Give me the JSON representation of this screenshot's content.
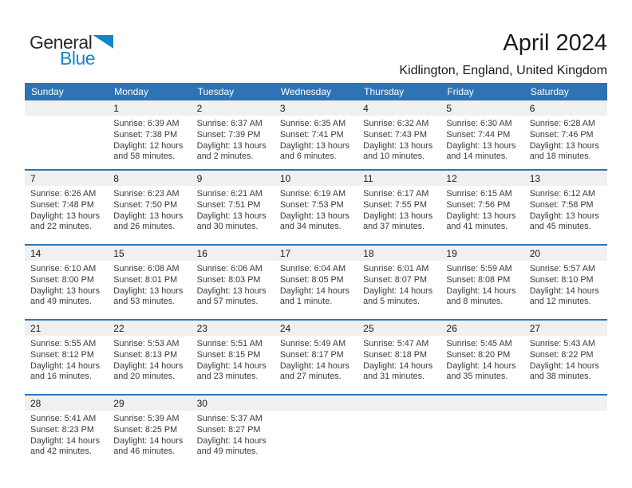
{
  "logo": {
    "part1": "General",
    "part2": "Blue"
  },
  "title": "April 2024",
  "subtitle": "Kidlington, England, United Kingdom",
  "colors": {
    "header_blue": "#2E74B5",
    "week_divider_blue": "#2E74B5",
    "day_band_gray": "#F0F0F0",
    "logo_blue": "#1287C8",
    "header_text": "#FFFFFF"
  },
  "weekday_headers": [
    "Sunday",
    "Monday",
    "Tuesday",
    "Wednesday",
    "Thursday",
    "Friday",
    "Saturday"
  ],
  "weeks": [
    [
      null,
      {
        "day": "1",
        "lines": [
          "Sunrise: 6:39 AM",
          "Sunset: 7:38 PM",
          "Daylight: 12 hours",
          "and 58 minutes."
        ]
      },
      {
        "day": "2",
        "lines": [
          "Sunrise: 6:37 AM",
          "Sunset: 7:39 PM",
          "Daylight: 13 hours",
          "and 2 minutes."
        ]
      },
      {
        "day": "3",
        "lines": [
          "Sunrise: 6:35 AM",
          "Sunset: 7:41 PM",
          "Daylight: 13 hours",
          "and 6 minutes."
        ]
      },
      {
        "day": "4",
        "lines": [
          "Sunrise: 6:32 AM",
          "Sunset: 7:43 PM",
          "Daylight: 13 hours",
          "and 10 minutes."
        ]
      },
      {
        "day": "5",
        "lines": [
          "Sunrise: 6:30 AM",
          "Sunset: 7:44 PM",
          "Daylight: 13 hours",
          "and 14 minutes."
        ]
      },
      {
        "day": "6",
        "lines": [
          "Sunrise: 6:28 AM",
          "Sunset: 7:46 PM",
          "Daylight: 13 hours",
          "and 18 minutes."
        ]
      }
    ],
    [
      {
        "day": "7",
        "lines": [
          "Sunrise: 6:26 AM",
          "Sunset: 7:48 PM",
          "Daylight: 13 hours",
          "and 22 minutes."
        ]
      },
      {
        "day": "8",
        "lines": [
          "Sunrise: 6:23 AM",
          "Sunset: 7:50 PM",
          "Daylight: 13 hours",
          "and 26 minutes."
        ]
      },
      {
        "day": "9",
        "lines": [
          "Sunrise: 6:21 AM",
          "Sunset: 7:51 PM",
          "Daylight: 13 hours",
          "and 30 minutes."
        ]
      },
      {
        "day": "10",
        "lines": [
          "Sunrise: 6:19 AM",
          "Sunset: 7:53 PM",
          "Daylight: 13 hours",
          "and 34 minutes."
        ]
      },
      {
        "day": "11",
        "lines": [
          "Sunrise: 6:17 AM",
          "Sunset: 7:55 PM",
          "Daylight: 13 hours",
          "and 37 minutes."
        ]
      },
      {
        "day": "12",
        "lines": [
          "Sunrise: 6:15 AM",
          "Sunset: 7:56 PM",
          "Daylight: 13 hours",
          "and 41 minutes."
        ]
      },
      {
        "day": "13",
        "lines": [
          "Sunrise: 6:12 AM",
          "Sunset: 7:58 PM",
          "Daylight: 13 hours",
          "and 45 minutes."
        ]
      }
    ],
    [
      {
        "day": "14",
        "lines": [
          "Sunrise: 6:10 AM",
          "Sunset: 8:00 PM",
          "Daylight: 13 hours",
          "and 49 minutes."
        ]
      },
      {
        "day": "15",
        "lines": [
          "Sunrise: 6:08 AM",
          "Sunset: 8:01 PM",
          "Daylight: 13 hours",
          "and 53 minutes."
        ]
      },
      {
        "day": "16",
        "lines": [
          "Sunrise: 6:06 AM",
          "Sunset: 8:03 PM",
          "Daylight: 13 hours",
          "and 57 minutes."
        ]
      },
      {
        "day": "17",
        "lines": [
          "Sunrise: 6:04 AM",
          "Sunset: 8:05 PM",
          "Daylight: 14 hours",
          "and 1 minute."
        ]
      },
      {
        "day": "18",
        "lines": [
          "Sunrise: 6:01 AM",
          "Sunset: 8:07 PM",
          "Daylight: 14 hours",
          "and 5 minutes."
        ]
      },
      {
        "day": "19",
        "lines": [
          "Sunrise: 5:59 AM",
          "Sunset: 8:08 PM",
          "Daylight: 14 hours",
          "and 8 minutes."
        ]
      },
      {
        "day": "20",
        "lines": [
          "Sunrise: 5:57 AM",
          "Sunset: 8:10 PM",
          "Daylight: 14 hours",
          "and 12 minutes."
        ]
      }
    ],
    [
      {
        "day": "21",
        "lines": [
          "Sunrise: 5:55 AM",
          "Sunset: 8:12 PM",
          "Daylight: 14 hours",
          "and 16 minutes."
        ]
      },
      {
        "day": "22",
        "lines": [
          "Sunrise: 5:53 AM",
          "Sunset: 8:13 PM",
          "Daylight: 14 hours",
          "and 20 minutes."
        ]
      },
      {
        "day": "23",
        "lines": [
          "Sunrise: 5:51 AM",
          "Sunset: 8:15 PM",
          "Daylight: 14 hours",
          "and 23 minutes."
        ]
      },
      {
        "day": "24",
        "lines": [
          "Sunrise: 5:49 AM",
          "Sunset: 8:17 PM",
          "Daylight: 14 hours",
          "and 27 minutes."
        ]
      },
      {
        "day": "25",
        "lines": [
          "Sunrise: 5:47 AM",
          "Sunset: 8:18 PM",
          "Daylight: 14 hours",
          "and 31 minutes."
        ]
      },
      {
        "day": "26",
        "lines": [
          "Sunrise: 5:45 AM",
          "Sunset: 8:20 PM",
          "Daylight: 14 hours",
          "and 35 minutes."
        ]
      },
      {
        "day": "27",
        "lines": [
          "Sunrise: 5:43 AM",
          "Sunset: 8:22 PM",
          "Daylight: 14 hours",
          "and 38 minutes."
        ]
      }
    ],
    [
      {
        "day": "28",
        "lines": [
          "Sunrise: 5:41 AM",
          "Sunset: 8:23 PM",
          "Daylight: 14 hours",
          "and 42 minutes."
        ]
      },
      {
        "day": "29",
        "lines": [
          "Sunrise: 5:39 AM",
          "Sunset: 8:25 PM",
          "Daylight: 14 hours",
          "and 46 minutes."
        ]
      },
      {
        "day": "30",
        "lines": [
          "Sunrise: 5:37 AM",
          "Sunset: 8:27 PM",
          "Daylight: 14 hours",
          "and 49 minutes."
        ]
      },
      null,
      null,
      null,
      null
    ]
  ]
}
